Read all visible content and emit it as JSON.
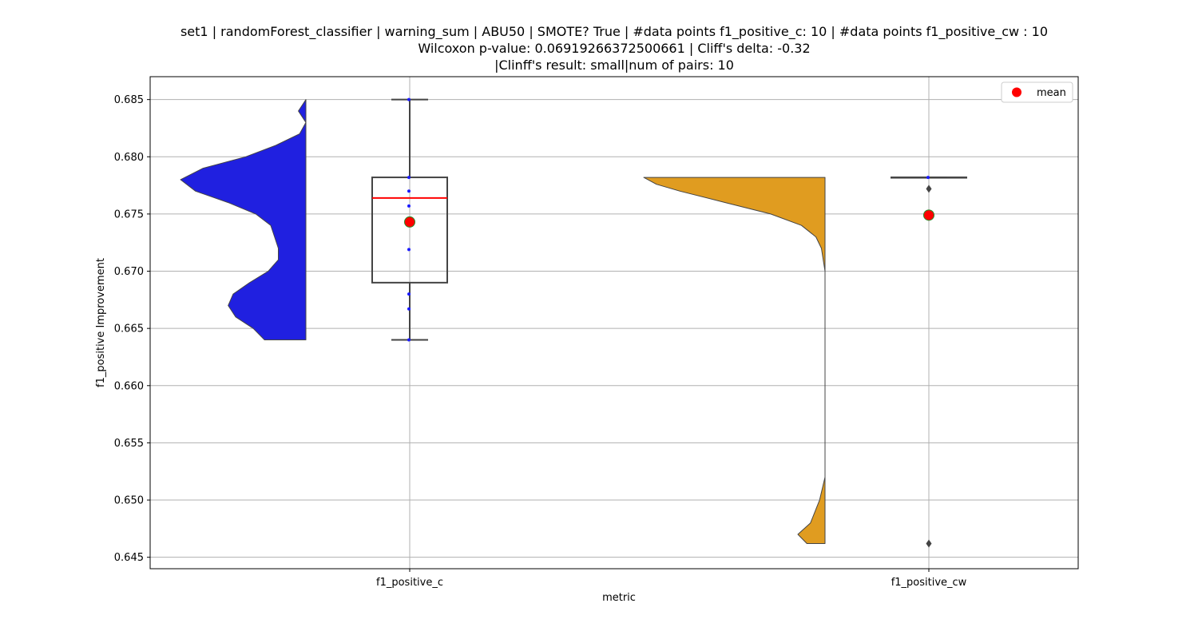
{
  "chart_data": {
    "type": "raincloud",
    "title_lines": [
      "set1 | randomForest_classifier | warning_sum | ABU50 | SMOTE? True | #data points f1_positive_c: 10 | #data points f1_positive_cw : 10",
      "Wilcoxon p-value: 0.06919266372500661 | Cliff's delta: -0.32",
      "|Clinff's result: small|num of pairs: 10"
    ],
    "xlabel": "metric",
    "ylabel": "f1_positive Improvement",
    "ylim": [
      0.644,
      0.687
    ],
    "yticks": [
      "0.645",
      "0.650",
      "0.655",
      "0.660",
      "0.665",
      "0.670",
      "0.675",
      "0.680",
      "0.685"
    ],
    "grid": true,
    "legend": {
      "position": "top-right",
      "label": "mean",
      "color": "#ff0000"
    },
    "categories": [
      "f1_positive_c",
      "f1_positive_cw"
    ],
    "series": [
      {
        "category": "f1_positive_c",
        "violin_color": "#2020e0",
        "box": {
          "whisker_low": 0.664,
          "q1": 0.669,
          "median": 0.6764,
          "q3": 0.6782,
          "whisker_high": 0.685
        },
        "mean": 0.6743,
        "points": [
          0.685,
          0.6782,
          0.677,
          0.6757,
          0.6719,
          0.668,
          0.6667,
          0.664
        ],
        "outliers": [],
        "density": [
          [
            0.664,
            0.33
          ],
          [
            0.665,
            0.42
          ],
          [
            0.666,
            0.56
          ],
          [
            0.667,
            0.62
          ],
          [
            0.668,
            0.58
          ],
          [
            0.669,
            0.45
          ],
          [
            0.67,
            0.3
          ],
          [
            0.671,
            0.22
          ],
          [
            0.672,
            0.22
          ],
          [
            0.673,
            0.25
          ],
          [
            0.674,
            0.28
          ],
          [
            0.675,
            0.4
          ],
          [
            0.676,
            0.62
          ],
          [
            0.677,
            0.88
          ],
          [
            0.678,
            1.0
          ],
          [
            0.679,
            0.82
          ],
          [
            0.68,
            0.48
          ],
          [
            0.681,
            0.24
          ],
          [
            0.682,
            0.05
          ],
          [
            0.683,
            0.0
          ],
          [
            0.684,
            0.06
          ],
          [
            0.685,
            0.0
          ]
        ]
      },
      {
        "category": "f1_positive_cw",
        "violin_color": "#e09c20",
        "box": {
          "whisker_low": 0.6782,
          "q1": 0.6782,
          "median": 0.6782,
          "q3": 0.6782,
          "whisker_high": 0.6782
        },
        "mean": 0.6749,
        "points": [
          0.6782
        ],
        "outliers": [
          0.6772,
          0.6462
        ],
        "density": [
          [
            0.6462,
            0.1
          ],
          [
            0.647,
            0.15
          ],
          [
            0.648,
            0.08
          ],
          [
            0.65,
            0.03
          ],
          [
            0.652,
            0.0
          ],
          [
            0.66,
            0.0
          ],
          [
            0.67,
            0.0
          ],
          [
            0.672,
            0.02
          ],
          [
            0.673,
            0.05
          ],
          [
            0.674,
            0.13
          ],
          [
            0.675,
            0.3
          ],
          [
            0.676,
            0.55
          ],
          [
            0.677,
            0.8
          ],
          [
            0.6776,
            0.93
          ],
          [
            0.6782,
            1.0
          ]
        ]
      }
    ]
  }
}
